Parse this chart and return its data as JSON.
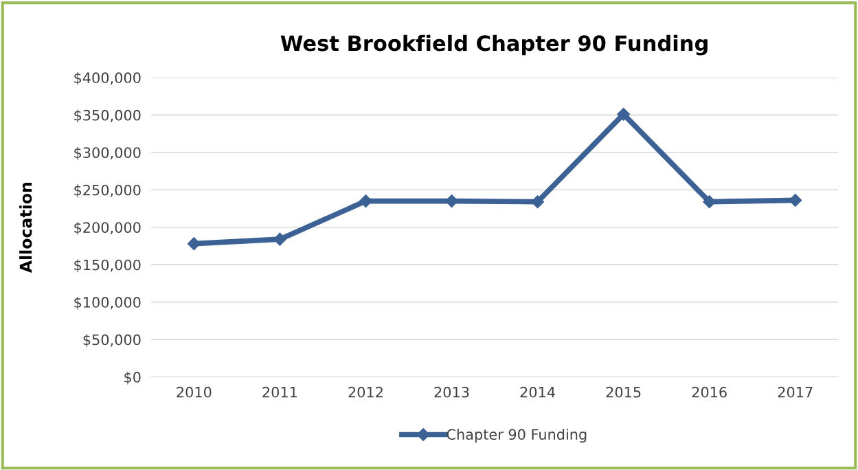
{
  "chart_data": {
    "type": "line",
    "title": "West Brookfield Chapter 90 Funding",
    "ylabel": "Allocation",
    "categories": [
      "2010",
      "2011",
      "2012",
      "2013",
      "2014",
      "2015",
      "2016",
      "2017"
    ],
    "series": [
      {
        "name": "Chapter 90 Funding",
        "color": "#3c6194",
        "values": [
          178000,
          184000,
          235000,
          235000,
          234000,
          351000,
          234000,
          236000
        ]
      }
    ],
    "ylim": [
      0,
      400000
    ],
    "yticks": [
      {
        "value": 0,
        "label": "$0"
      },
      {
        "value": 50000,
        "label": "$50,000"
      },
      {
        "value": 100000,
        "label": "$100,000"
      },
      {
        "value": 150000,
        "label": "$150,000"
      },
      {
        "value": 200000,
        "label": "$200,000"
      },
      {
        "value": 250000,
        "label": "$250,000"
      },
      {
        "value": 300000,
        "label": "$300,000"
      },
      {
        "value": 350000,
        "label": "$350,000"
      },
      {
        "value": 400000,
        "label": "$400,000"
      }
    ],
    "grid": "y",
    "legend": "bottom",
    "marker": "diamond",
    "line_style": "solid"
  }
}
